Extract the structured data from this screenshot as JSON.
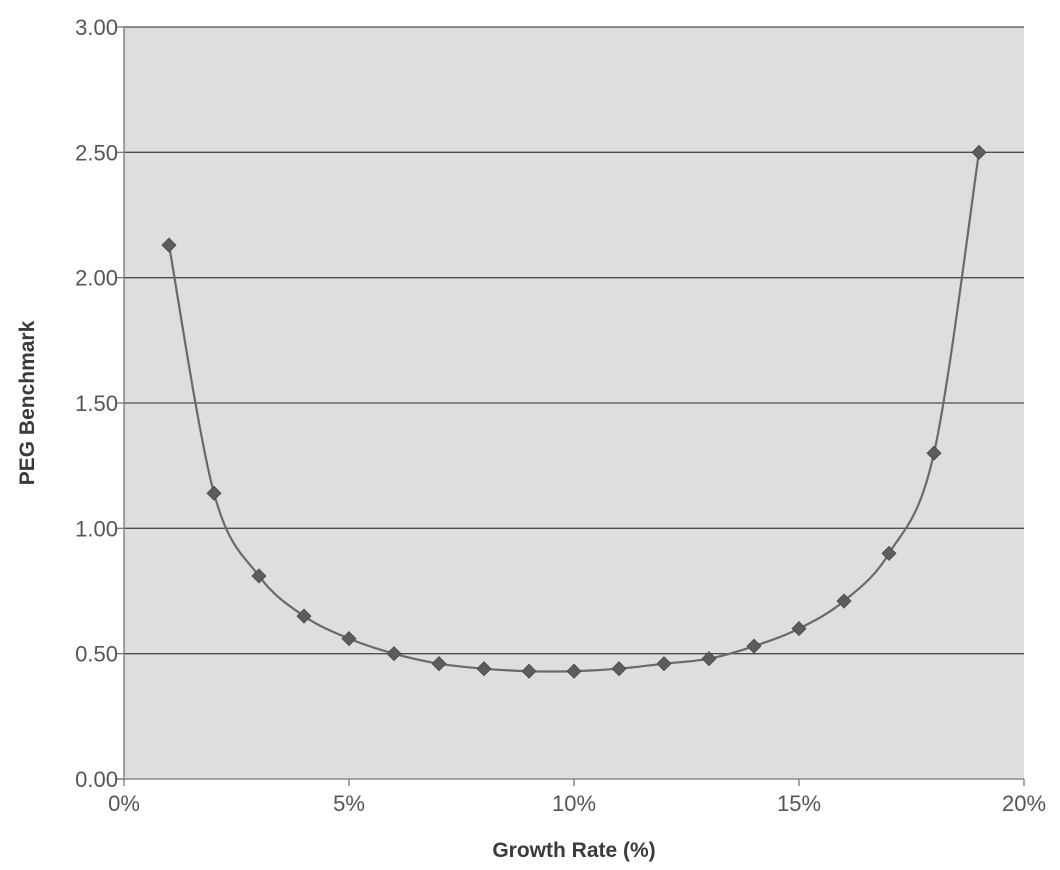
{
  "chart_data": {
    "type": "line",
    "title": "",
    "xlabel": "Growth Rate (%)",
    "ylabel": "PEG Benchmark",
    "xlim": [
      0,
      20
    ],
    "ylim": [
      0,
      3
    ],
    "x_ticks": [
      0,
      5,
      10,
      15,
      20
    ],
    "x_tick_labels": [
      "0%",
      "5%",
      "10%",
      "15%",
      "20%"
    ],
    "y_ticks": [
      0,
      0.5,
      1,
      1.5,
      2,
      2.5,
      3
    ],
    "y_tick_labels": [
      "0.00",
      "0.50",
      "1.00",
      "1.50",
      "2.00",
      "2.50",
      "3.00"
    ],
    "grid": "horizontal",
    "legend": "none",
    "colors": {
      "plot_background": "#dedede",
      "gridline": "#4d4d4d",
      "line": "#6a6a6a",
      "marker": "#5c5c5c"
    },
    "marker": "diamond",
    "series": [
      {
        "x": [
          1,
          2,
          3,
          4,
          5,
          6,
          7,
          8,
          9,
          10,
          11,
          12,
          13,
          14,
          15,
          16,
          17,
          18,
          19
        ],
        "values": [
          2.13,
          1.14,
          0.81,
          0.65,
          0.56,
          0.5,
          0.46,
          0.44,
          0.43,
          0.43,
          0.44,
          0.46,
          0.48,
          0.53,
          0.6,
          0.71,
          0.9,
          1.3,
          2.5
        ]
      }
    ]
  }
}
